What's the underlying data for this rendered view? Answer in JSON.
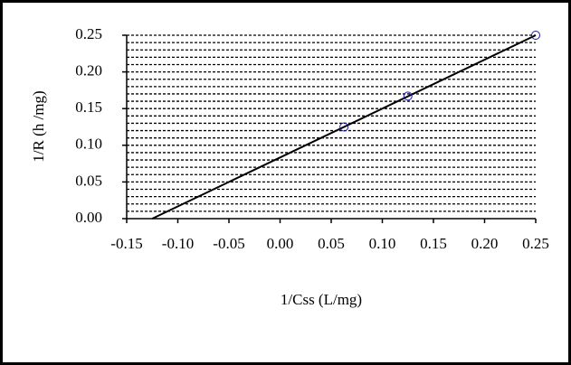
{
  "chart_data": {
    "type": "scatter",
    "x_label": "1/Css (L/mg)",
    "y_label": "1/R (h /mg)",
    "series": [
      {
        "type": "scatter",
        "color": "#1a1aa0",
        "x": [
          0.0625,
          0.125,
          0.25
        ],
        "values": [
          0.125,
          0.167,
          0.25
        ]
      },
      {
        "type": "line",
        "color": "#000000",
        "x": [
          -0.125,
          0.25
        ],
        "values": [
          0,
          0.25
        ]
      }
    ],
    "xlim": [
      -0.15,
      0.25
    ],
    "ylim": [
      0,
      0.25
    ],
    "xticks": [
      -0.15,
      {
        "value": -0.1,
        "label": "-0.10"
      },
      -0.05,
      {
        "value": 0,
        "label": "0.00"
      },
      0.05,
      {
        "value": 0.1,
        "label": "0.10"
      },
      0.15,
      {
        "value": 0.2,
        "label": "0.20"
      },
      0.25
    ],
    "yticks": [
      {
        "value": 0,
        "label": "0.00"
      },
      0.05,
      {
        "value": 0.1,
        "label": "0.10"
      },
      0.15,
      {
        "value": 0.2,
        "label": "0.20"
      },
      0.25
    ],
    "yminorticks": [
      0.01,
      0.02,
      0.03,
      0.04,
      0.05,
      0.06,
      0.07,
      0.08,
      0.09,
      0.1,
      0.11,
      0.12,
      0.13,
      0.14,
      0.15,
      0.16,
      0.17,
      0.18,
      0.19,
      0.2,
      0.21,
      0.22,
      0.23,
      0.24,
      0.25
    ],
    "grid": true
  }
}
